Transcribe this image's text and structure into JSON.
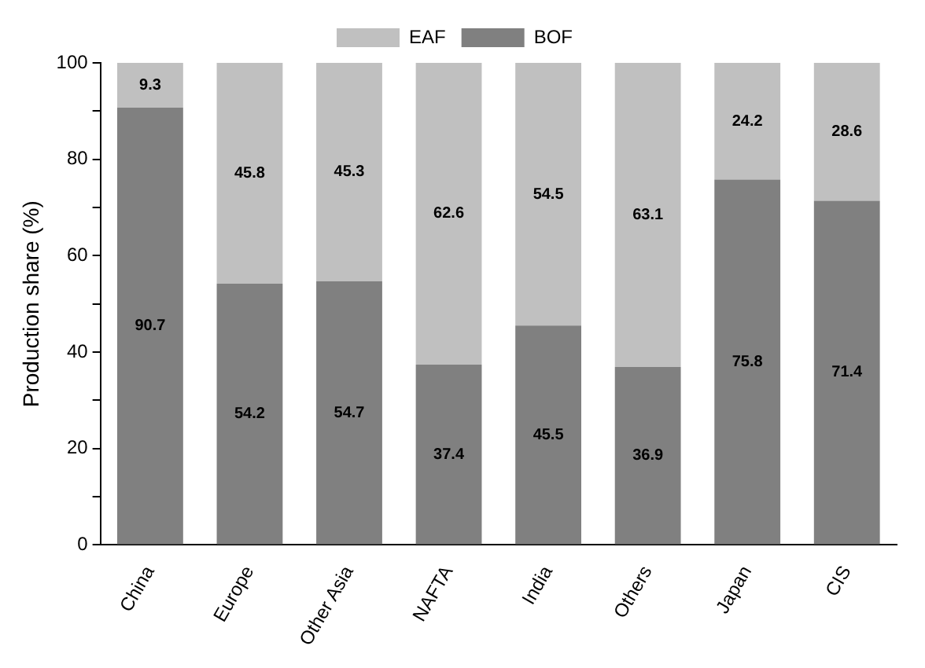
{
  "chart_data": {
    "type": "bar",
    "stacked": true,
    "ylabel": "Production share (%)",
    "categories": [
      "China",
      "Europe",
      "Other Asia",
      "NAFTA",
      "India",
      "Others",
      "Japan",
      "CIS"
    ],
    "series": [
      {
        "name": "BOF",
        "color": "#808080",
        "values": [
          90.7,
          54.2,
          54.7,
          37.4,
          45.5,
          36.9,
          75.8,
          71.4
        ]
      },
      {
        "name": "EAF",
        "color": "#c0c0c0",
        "values": [
          9.3,
          45.8,
          45.3,
          62.6,
          54.5,
          63.1,
          24.2,
          28.6
        ]
      }
    ],
    "ylim": [
      0,
      100
    ],
    "yticks": [
      0,
      {
        "value": 10,
        "label": null
      },
      20,
      {
        "value": 30,
        "label": null
      },
      40,
      {
        "value": 50,
        "label": null
      },
      60,
      {
        "value": 70,
        "label": null
      },
      80,
      {
        "value": 90,
        "label": null
      },
      100
    ],
    "legend": "top",
    "data_labels": true
  }
}
